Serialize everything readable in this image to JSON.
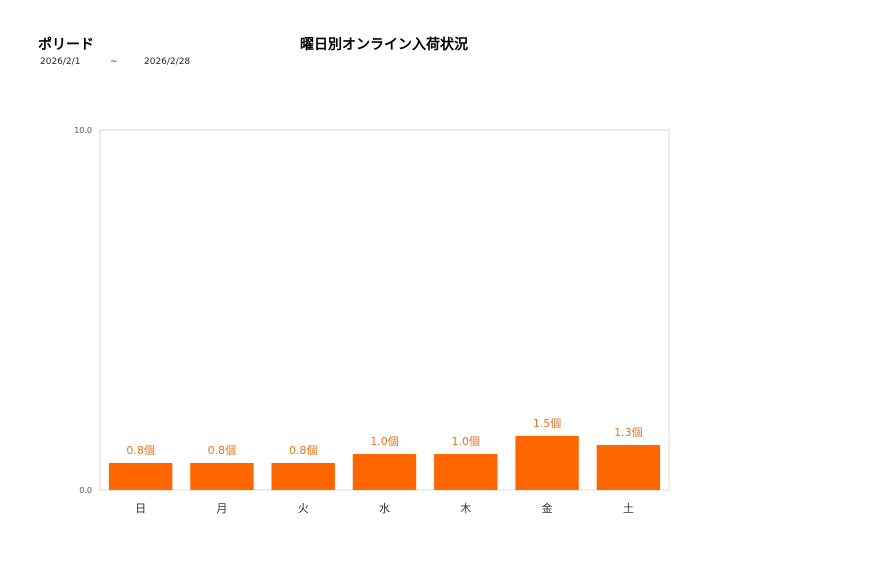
{
  "header": {
    "brand": "ポリード",
    "title": "曜日別オンライン入荷状況",
    "date_from": "2026/2/1",
    "date_sep": "~",
    "date_to": "2026/2/28"
  },
  "chart_data": {
    "type": "bar",
    "title": "曜日別オンライン入荷状況",
    "categories": [
      "日",
      "月",
      "火",
      "水",
      "木",
      "金",
      "土"
    ],
    "values": [
      0.75,
      0.75,
      0.75,
      1.0,
      1.0,
      1.5,
      1.25
    ],
    "data_labels": [
      "0.8個",
      "0.8個",
      "0.8個",
      "1.0個",
      "1.0個",
      "1.5個",
      "1.3個"
    ],
    "ylim": [
      0,
      10
    ],
    "yticks": [
      "0.0",
      "10.0"
    ],
    "bar_color": "#ff6600",
    "label_color": "#e8741e",
    "grid": false,
    "legend": "none"
  }
}
